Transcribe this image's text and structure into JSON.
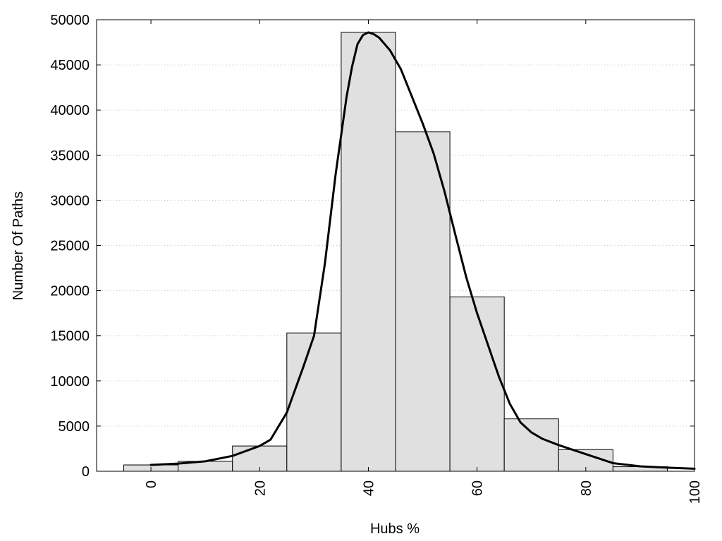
{
  "chart_data": {
    "type": "bar",
    "title": "",
    "xlabel": "Hubs %",
    "ylabel": "Number Of Paths",
    "xlim": [
      -10,
      100
    ],
    "ylim": [
      0,
      50000
    ],
    "x_ticks": [
      0,
      20,
      40,
      60,
      80,
      100
    ],
    "y_ticks": [
      0,
      5000,
      10000,
      15000,
      20000,
      25000,
      30000,
      35000,
      40000,
      45000,
      50000
    ],
    "grid": "horizontal dotted",
    "bin_width": 10,
    "categories": [
      0,
      10,
      20,
      30,
      40,
      50,
      60,
      70,
      80,
      90
    ],
    "values": [
      700,
      1100,
      2800,
      15300,
      48600,
      37600,
      19300,
      5800,
      2400,
      500
    ],
    "density_curve": {
      "x": [
        0,
        5,
        10,
        15,
        20,
        22,
        25,
        28,
        30,
        32,
        34,
        36,
        37,
        38,
        39,
        40,
        41,
        42,
        44,
        46,
        48,
        50,
        52,
        54,
        56,
        58,
        60,
        62,
        64,
        66,
        68,
        70,
        72,
        75,
        80,
        85,
        90,
        95,
        100
      ],
      "y": [
        700,
        850,
        1100,
        1700,
        2800,
        3500,
        6500,
        11500,
        15000,
        23000,
        33000,
        41500,
        44800,
        47300,
        48300,
        48600,
        48400,
        48000,
        46600,
        44500,
        41500,
        38500,
        35200,
        31000,
        26200,
        21500,
        17500,
        14000,
        10500,
        7500,
        5400,
        4300,
        3600,
        2900,
        1900,
        900,
        550,
        400,
        280
      ]
    },
    "colors": {
      "bar_fill": "#e0e0e0",
      "bar_stroke": "#000000",
      "curve": "#000000"
    }
  }
}
